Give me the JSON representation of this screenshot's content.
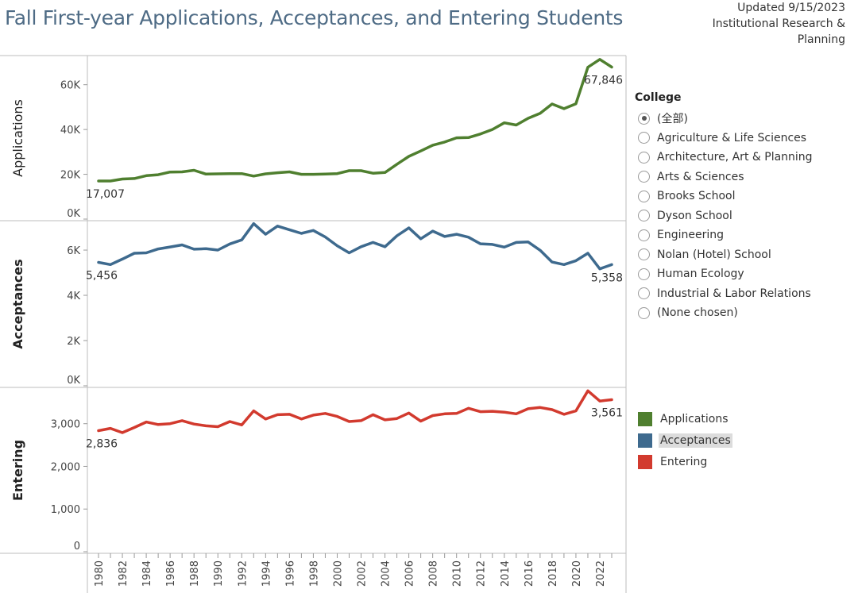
{
  "header": {
    "title": "Fall First-year Applications, Acceptances, and Entering Students",
    "updated": "Updated 9/15/2023",
    "org_line1": "Institutional Research &",
    "org_line2": "Planning"
  },
  "filter": {
    "title": "College",
    "selected_index": 0,
    "options": [
      "(全部)",
      "Agriculture & Life Sciences",
      "Architecture, Art & Planning",
      "Arts & Sciences",
      "Brooks School",
      "Dyson School",
      "Engineering",
      "Nolan (Hotel) School",
      "Human Ecology",
      "Industrial & Labor Relations",
      "(None chosen)"
    ]
  },
  "legend": {
    "highlighted_index": 1,
    "items": [
      {
        "label": "Applications",
        "color": "#4f7f2f"
      },
      {
        "label": "Acceptances",
        "color": "#3e6a8e"
      },
      {
        "label": "Entering",
        "color": "#d23a2e"
      }
    ]
  },
  "chart_data": {
    "type": "line",
    "x": [
      1980,
      1981,
      1982,
      1983,
      1984,
      1985,
      1986,
      1987,
      1988,
      1989,
      1990,
      1991,
      1992,
      1993,
      1994,
      1995,
      1996,
      1997,
      1998,
      1999,
      2000,
      2001,
      2002,
      2003,
      2004,
      2005,
      2006,
      2007,
      2008,
      2009,
      2010,
      2011,
      2012,
      2013,
      2014,
      2015,
      2016,
      2017,
      2018,
      2019,
      2020,
      2021,
      2022,
      2023
    ],
    "x_tick_labels": [
      "1980",
      "1982",
      "1984",
      "1986",
      "1988",
      "1990",
      "1992",
      "1994",
      "1996",
      "1998",
      "2000",
      "2002",
      "2004",
      "2006",
      "2008",
      "2010",
      "2012",
      "2014",
      "2016",
      "2018",
      "2020",
      "2022"
    ],
    "panels": [
      {
        "name": "Applications",
        "ylabel": "Applications",
        "ylim": [
          0,
          73000
        ],
        "yticks": [
          0,
          20000,
          40000,
          60000
        ],
        "ytick_labels": [
          "0K",
          "20K",
          "40K",
          "60K"
        ],
        "color": "#4f7f2f",
        "first_label": "17,007",
        "last_label": "67,846",
        "values": [
          17007,
          17000,
          17900,
          18100,
          19400,
          19800,
          21000,
          21100,
          21800,
          20100,
          20200,
          20300,
          20300,
          19200,
          20200,
          20700,
          21100,
          20000,
          20000,
          20100,
          20300,
          21600,
          21600,
          20500,
          20800,
          24500,
          28000,
          30400,
          33000,
          34400,
          36300,
          36400,
          38000,
          40000,
          43000,
          42000,
          45000,
          47200,
          51400,
          49300,
          51500,
          67800,
          71300,
          67846
        ]
      },
      {
        "name": "Acceptances",
        "ylabel": "Acceptances",
        "ylim": [
          0,
          7300
        ],
        "yticks": [
          0,
          2000,
          4000,
          6000
        ],
        "ytick_labels": [
          "0K",
          "2K",
          "4K",
          "6K"
        ],
        "color": "#3e6a8e",
        "first_label": "5,456",
        "last_label": "5,358",
        "values": [
          5456,
          5360,
          5600,
          5860,
          5880,
          6050,
          6140,
          6230,
          6040,
          6060,
          6000,
          6270,
          6450,
          7170,
          6700,
          7060,
          6900,
          6740,
          6870,
          6580,
          6190,
          5880,
          6150,
          6340,
          6150,
          6630,
          6980,
          6500,
          6840,
          6600,
          6700,
          6570,
          6280,
          6250,
          6130,
          6340,
          6360,
          5990,
          5470,
          5360,
          5530,
          5860,
          5170,
          5358
        ]
      },
      {
        "name": "Entering",
        "ylabel": "Entering",
        "ylim": [
          0,
          3850
        ],
        "yticks": [
          0,
          1000,
          2000,
          3000
        ],
        "ytick_labels": [
          "0",
          "1,000",
          "2,000",
          "3,000"
        ],
        "color": "#d23a2e",
        "first_label": "2,836",
        "last_label": "3,561",
        "values": [
          2836,
          2890,
          2790,
          2910,
          3040,
          2980,
          3000,
          3070,
          2990,
          2950,
          2930,
          3050,
          2970,
          3300,
          3110,
          3210,
          3220,
          3110,
          3200,
          3240,
          3170,
          3050,
          3070,
          3210,
          3090,
          3120,
          3250,
          3060,
          3190,
          3230,
          3240,
          3360,
          3280,
          3290,
          3270,
          3230,
          3350,
          3380,
          3330,
          3220,
          3300,
          3770,
          3530,
          3561
        ]
      }
    ]
  }
}
